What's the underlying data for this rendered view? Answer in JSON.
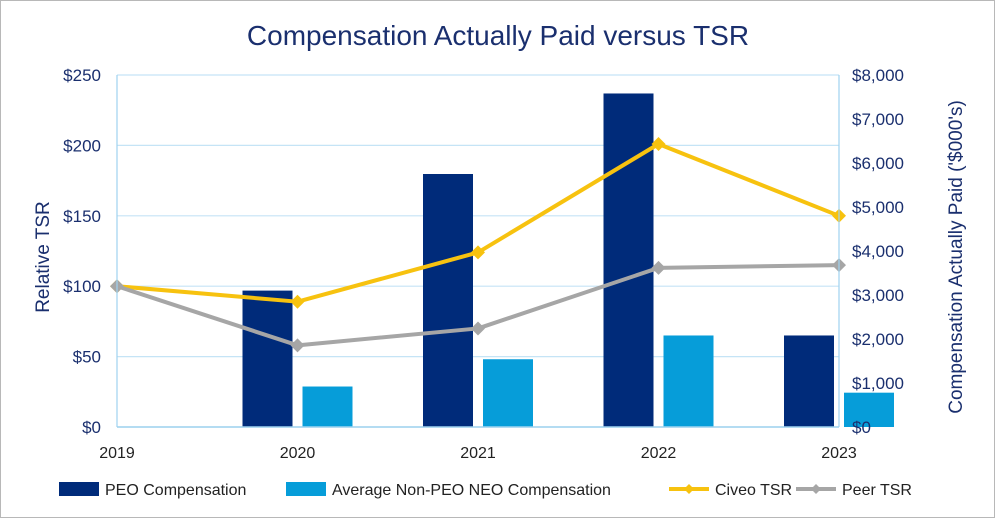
{
  "chart_data": {
    "type": "bar",
    "title": "Compensation Actually Paid versus TSR",
    "categories": [
      "2019",
      "2020",
      "2021",
      "2022",
      "2023"
    ],
    "left_axis": {
      "label": "Relative TSR",
      "range": [
        0,
        250
      ],
      "ticks": [
        0,
        50,
        100,
        150,
        200,
        250
      ],
      "tick_labels": [
        "$0",
        "$50",
        "$100",
        "$150",
        "$200",
        "$250"
      ]
    },
    "right_axis": {
      "label": "Compensation Actually Paid ('$000's)",
      "range": [
        0,
        8000
      ],
      "ticks": [
        0,
        1000,
        2000,
        3000,
        4000,
        5000,
        6000,
        7000,
        8000
      ],
      "tick_labels": [
        "$0",
        "$1,000",
        "$2,000",
        "$3,000",
        "$4,000",
        "$5,000",
        "$6,000",
        "$7,000",
        "$8,000"
      ]
    },
    "series": [
      {
        "name": "PEO Compensation",
        "type": "bar",
        "axis": "right",
        "color": "#002b7a",
        "values": [
          null,
          3100,
          5750,
          7580,
          2080
        ]
      },
      {
        "name": "Average Non-PEO NEO Compensation",
        "type": "bar",
        "axis": "right",
        "color": "#069dd9",
        "values": [
          null,
          920,
          1540,
          2080,
          780
        ]
      },
      {
        "name": "Civeo TSR",
        "type": "line",
        "axis": "left",
        "color": "#f7c20f",
        "values": [
          100,
          89,
          124,
          201,
          150
        ]
      },
      {
        "name": "Peer TSR",
        "type": "line",
        "axis": "left",
        "color": "#a6a6a6",
        "values": [
          100,
          58,
          70,
          113,
          115
        ]
      }
    ],
    "grid": true,
    "legend": "bottom"
  }
}
